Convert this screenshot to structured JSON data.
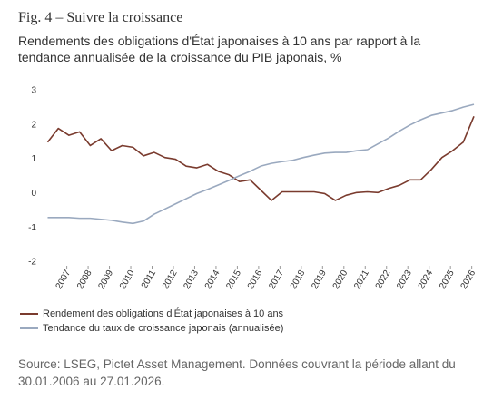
{
  "chart_data": {
    "type": "line",
    "title": "Fig. 4 – Suivre la croissance",
    "subtitle": "Rendements des obligations d'État japonaises à 10 ans par rapport à la tendance annualisée de la croissance du PIB japonais, %",
    "source": "Source: LSEG, Pictet Asset Management. Données couvrant la période allant du 30.01.2006 au 27.01.2026.",
    "x": [
      2006.1,
      2006.6,
      2007.1,
      2007.6,
      2008.1,
      2008.6,
      2009.1,
      2009.6,
      2010.1,
      2010.6,
      2011.1,
      2011.6,
      2012.1,
      2012.6,
      2013.1,
      2013.6,
      2014.1,
      2014.6,
      2015.1,
      2015.6,
      2016.1,
      2016.6,
      2017.1,
      2017.6,
      2018.1,
      2018.6,
      2019.1,
      2019.6,
      2020.1,
      2020.6,
      2021.1,
      2021.6,
      2022.1,
      2022.6,
      2023.1,
      2023.6,
      2024.1,
      2024.6,
      2025.1,
      2025.6,
      2026.1
    ],
    "series": [
      {
        "name": "Rendement des obligations d'État japonaises à 10 ans",
        "color": "#7a3b2e",
        "values": [
          1.5,
          1.9,
          1.7,
          1.8,
          1.4,
          1.6,
          1.25,
          1.4,
          1.35,
          1.1,
          1.2,
          1.05,
          1.0,
          0.8,
          0.75,
          0.85,
          0.65,
          0.55,
          0.35,
          0.4,
          0.1,
          -0.2,
          0.05,
          0.05,
          0.05,
          0.05,
          0.0,
          -0.2,
          -0.05,
          0.03,
          0.05,
          0.03,
          0.15,
          0.24,
          0.4,
          0.4,
          0.7,
          1.05,
          1.25,
          1.5,
          2.25
        ]
      },
      {
        "name": "Tendance du taux de croissance japonais (annualisée)",
        "color": "#9aa9bf",
        "values": [
          -0.7,
          -0.7,
          -0.7,
          -0.72,
          -0.72,
          -0.75,
          -0.78,
          -0.83,
          -0.87,
          -0.8,
          -0.6,
          -0.45,
          -0.3,
          -0.15,
          0.0,
          0.12,
          0.25,
          0.38,
          0.52,
          0.65,
          0.8,
          0.88,
          0.93,
          0.97,
          1.05,
          1.12,
          1.18,
          1.2,
          1.2,
          1.25,
          1.28,
          1.45,
          1.62,
          1.82,
          2.0,
          2.15,
          2.28,
          2.35,
          2.42,
          2.52,
          2.6
        ]
      }
    ],
    "xlim": [
      2006.08,
      2026.1
    ],
    "xticks": [
      2007,
      2008,
      2009,
      2010,
      2011,
      2012,
      2013,
      2014,
      2015,
      2016,
      2017,
      2018,
      2019,
      2020,
      2021,
      2022,
      2023,
      2024,
      2025,
      2026
    ],
    "ylim": [
      -2,
      3
    ],
    "yticks": [
      -2,
      -1,
      0,
      1,
      2,
      3
    ]
  }
}
